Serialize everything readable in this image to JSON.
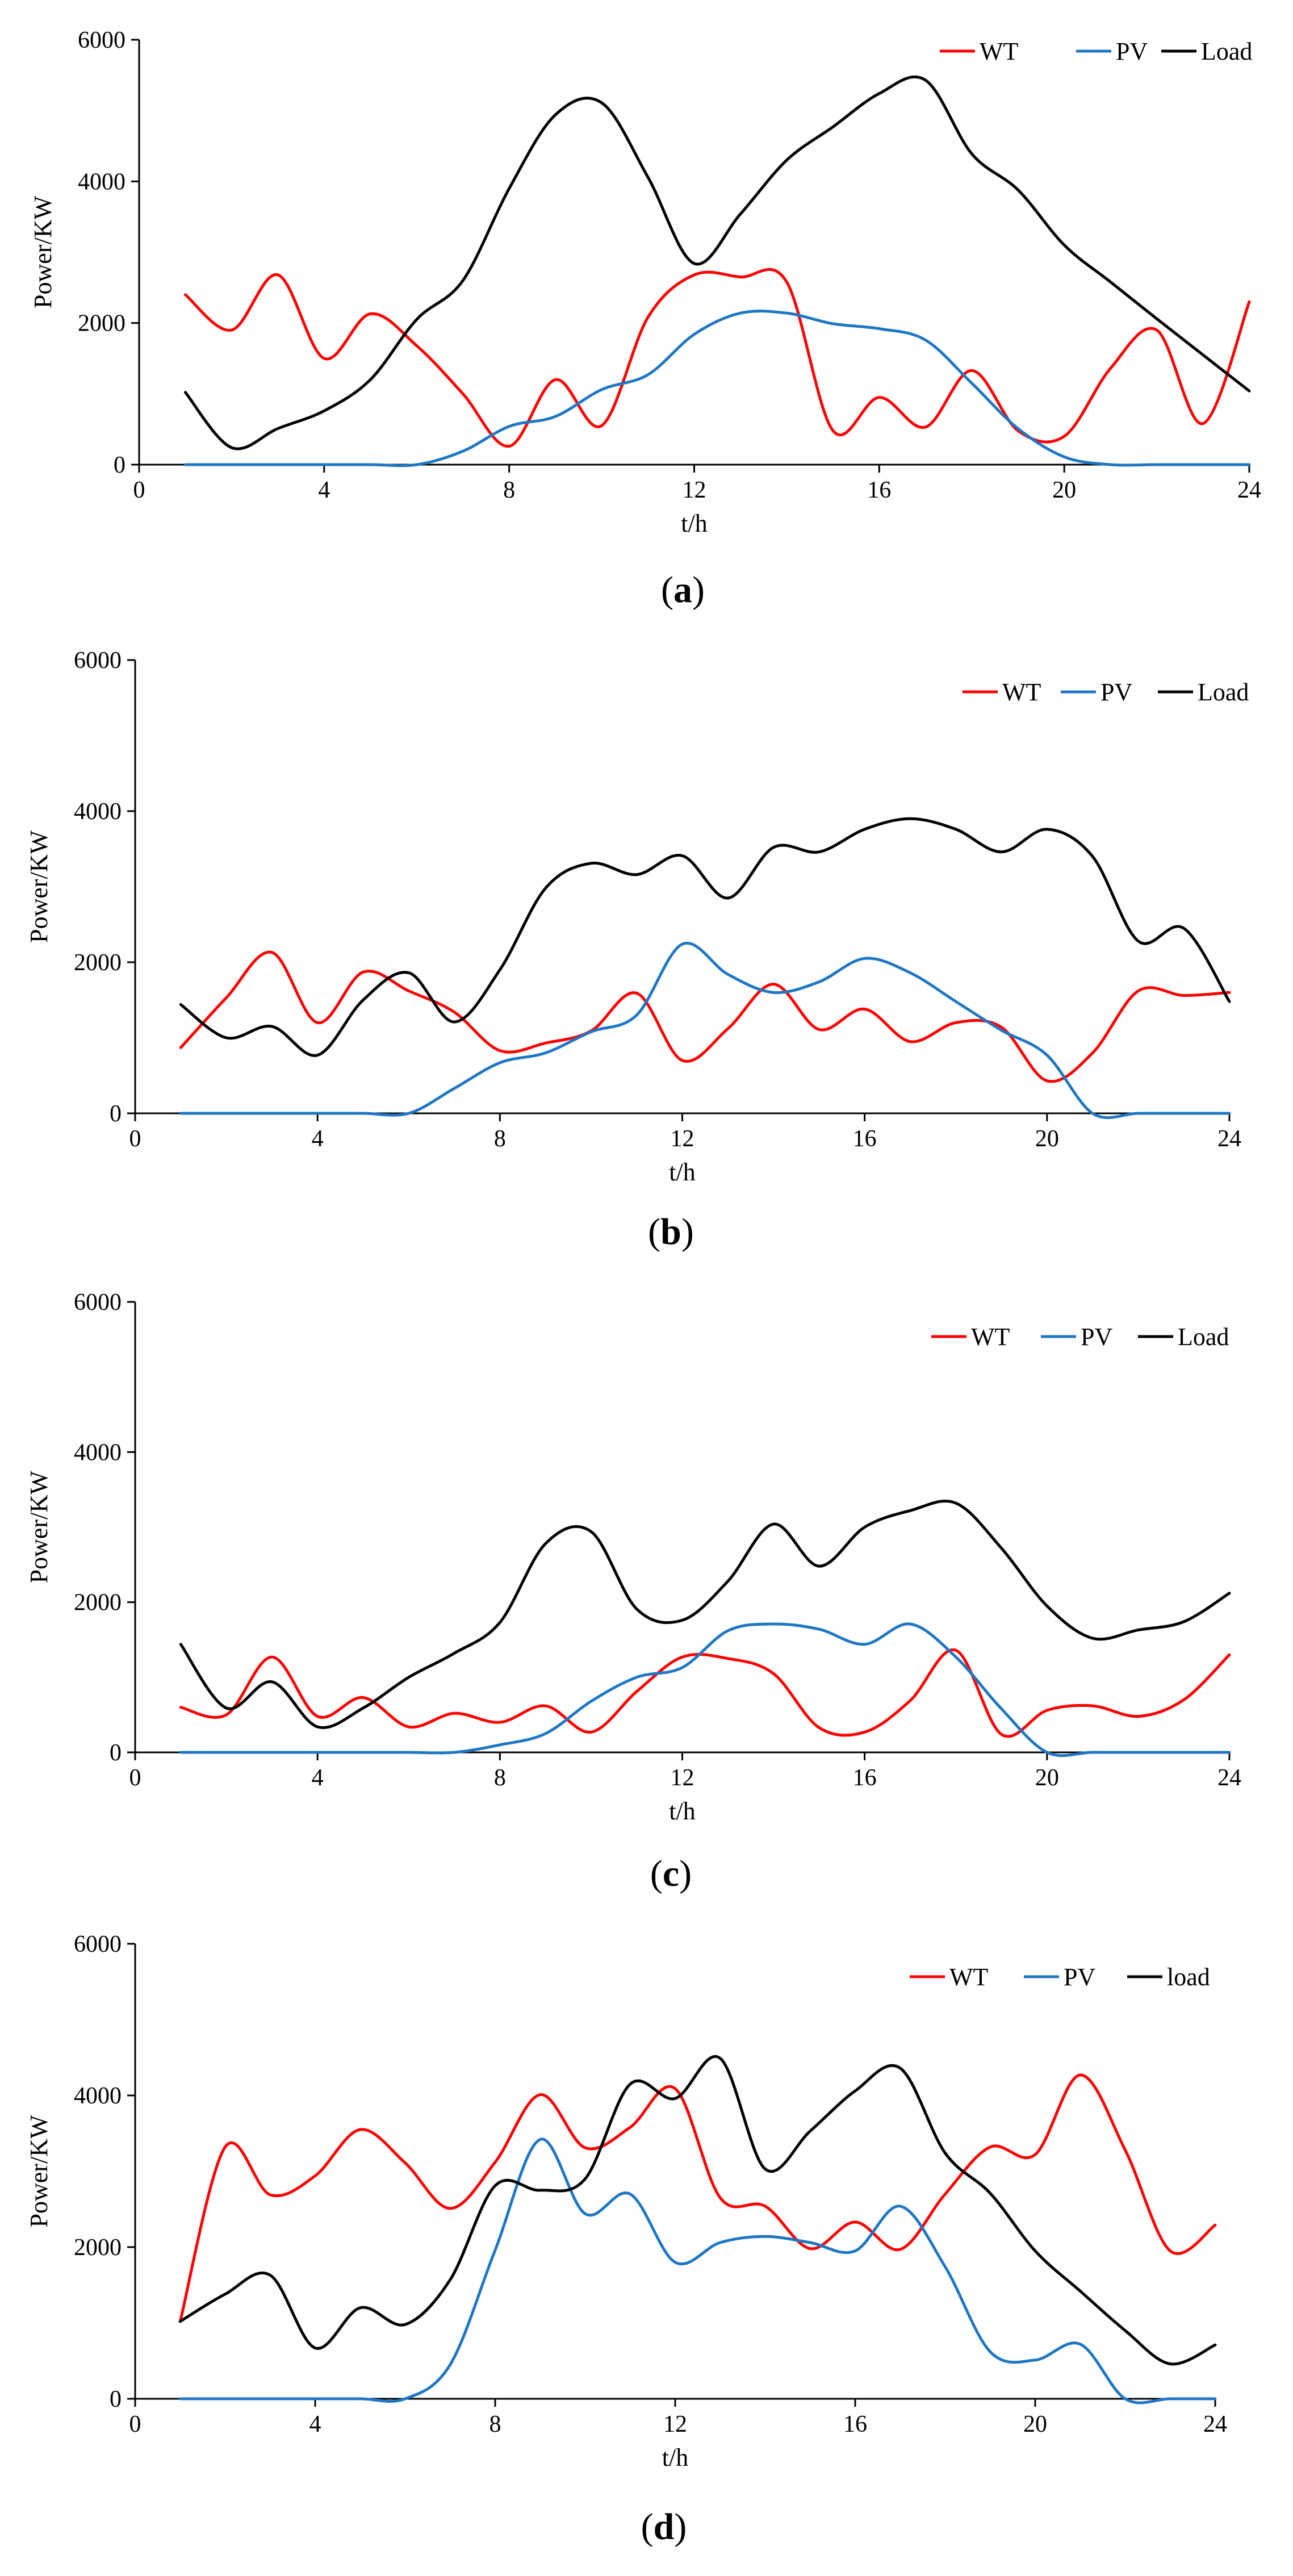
{
  "chart_data": [
    {
      "type": "line",
      "panel_label": "a",
      "xlabel": "t/h",
      "ylabel": "Power/KW",
      "xlim": [
        0,
        24
      ],
      "ylim": [
        0,
        6000
      ],
      "xticks": [
        0,
        4,
        8,
        12,
        16,
        20,
        24
      ],
      "yticks": [
        0,
        2000,
        4000,
        6000
      ],
      "grid": false,
      "legend_position": "top-right",
      "x": [
        1,
        2,
        3,
        4,
        5,
        6,
        7,
        8,
        9,
        10,
        11,
        12,
        13,
        14,
        15,
        16,
        17,
        18,
        19,
        20,
        21,
        22,
        23,
        24
      ],
      "series": [
        {
          "name": "WT",
          "color": "#ff0000",
          "values": [
            2400,
            1900,
            2680,
            1500,
            2130,
            1680,
            1000,
            260,
            1200,
            550,
            2080,
            2680,
            2650,
            2580,
            480,
            950,
            530,
            1330,
            480,
            400,
            1360,
            1900,
            580,
            2300
          ]
        },
        {
          "name": "PV",
          "color": "#1f77c4",
          "values": [
            0,
            0,
            0,
            0,
            0,
            0,
            190,
            540,
            680,
            1060,
            1270,
            1840,
            2140,
            2140,
            1990,
            1920,
            1760,
            1150,
            510,
            110,
            0,
            0,
            0,
            0
          ]
        },
        {
          "name": "Load",
          "color": "#000000",
          "values": [
            1020,
            240,
            510,
            760,
            1200,
            2050,
            2600,
            3900,
            4940,
            5110,
            4060,
            2840,
            3540,
            4300,
            4770,
            5240,
            5430,
            4390,
            3880,
            3100,
            2580,
            2060,
            1550,
            1040
          ]
        }
      ]
    },
    {
      "type": "line",
      "panel_label": "b",
      "xlabel": "t/h",
      "ylabel": "Power/KW",
      "xlim": [
        0,
        24
      ],
      "ylim": [
        0,
        6000
      ],
      "xticks": [
        0,
        4,
        8,
        12,
        16,
        20,
        24
      ],
      "yticks": [
        0,
        2000,
        4000,
        6000
      ],
      "grid": false,
      "legend_position": "top-right",
      "x": [
        1,
        2,
        3,
        4,
        5,
        6,
        7,
        8,
        9,
        10,
        11,
        12,
        13,
        14,
        15,
        16,
        17,
        18,
        19,
        20,
        21,
        22,
        23,
        24
      ],
      "series": [
        {
          "name": "WT",
          "color": "#ff0000",
          "values": [
            870,
            1530,
            2130,
            1200,
            1870,
            1620,
            1340,
            830,
            930,
            1090,
            1590,
            700,
            1120,
            1710,
            1110,
            1380,
            950,
            1200,
            1140,
            430,
            800,
            1620,
            1560,
            1600
          ]
        },
        {
          "name": "PV",
          "color": "#1f77c4",
          "values": [
            0,
            0,
            0,
            0,
            0,
            0,
            330,
            670,
            800,
            1080,
            1300,
            2240,
            1840,
            1600,
            1740,
            2050,
            1860,
            1480,
            1100,
            770,
            0,
            0,
            0,
            0
          ]
        },
        {
          "name": "Load",
          "color": "#000000",
          "values": [
            1440,
            1000,
            1150,
            770,
            1500,
            1860,
            1210,
            1900,
            2980,
            3310,
            3160,
            3410,
            2850,
            3520,
            3460,
            3760,
            3900,
            3760,
            3460,
            3760,
            3400,
            2280,
            2450,
            1480
          ]
        }
      ]
    },
    {
      "type": "line",
      "panel_label": "c",
      "xlabel": "t/h",
      "ylabel": "Power/KW",
      "xlim": [
        0,
        24
      ],
      "ylim": [
        0,
        6000
      ],
      "xticks": [
        0,
        4,
        8,
        12,
        16,
        20,
        24
      ],
      "yticks": [
        0,
        2000,
        4000,
        6000
      ],
      "grid": false,
      "legend_position": "top-right",
      "x": [
        1,
        2,
        3,
        4,
        5,
        6,
        7,
        8,
        9,
        10,
        11,
        12,
        13,
        14,
        15,
        16,
        17,
        18,
        19,
        20,
        21,
        22,
        23,
        24
      ],
      "series": [
        {
          "name": "WT",
          "color": "#ff0000",
          "values": [
            600,
            500,
            1270,
            480,
            730,
            340,
            520,
            400,
            620,
            270,
            810,
            1270,
            1250,
            1050,
            330,
            270,
            690,
            1360,
            240,
            560,
            620,
            480,
            700,
            1300
          ]
        },
        {
          "name": "PV",
          "color": "#1f77c4",
          "values": [
            0,
            0,
            0,
            0,
            0,
            0,
            0,
            100,
            250,
            680,
            1000,
            1130,
            1620,
            1710,
            1640,
            1440,
            1710,
            1270,
            580,
            0,
            0,
            0,
            0,
            0
          ]
        },
        {
          "name": "Load",
          "color": "#000000",
          "values": [
            1440,
            590,
            940,
            340,
            590,
            1000,
            1320,
            1730,
            2780,
            2940,
            1910,
            1760,
            2280,
            3040,
            2480,
            3000,
            3220,
            3320,
            2720,
            1950,
            1520,
            1630,
            1740,
            2120
          ]
        }
      ]
    },
    {
      "type": "line",
      "panel_label": "d",
      "xlabel": "t/h",
      "ylabel": "Power/KW",
      "xlim": [
        0,
        24
      ],
      "ylim": [
        0,
        6000
      ],
      "xticks": [
        0,
        4,
        8,
        12,
        16,
        20,
        24
      ],
      "yticks": [
        0,
        2000,
        4000,
        6000
      ],
      "grid": false,
      "legend_position": "top-right",
      "x": [
        1,
        2,
        3,
        4,
        5,
        6,
        7,
        8,
        9,
        10,
        11,
        12,
        13,
        14,
        15,
        16,
        17,
        18,
        19,
        20,
        21,
        22,
        23,
        24
      ],
      "series": [
        {
          "name": "WT",
          "color": "#ff0000",
          "values": [
            1020,
            3320,
            2690,
            2940,
            3550,
            3110,
            2510,
            3120,
            4010,
            3310,
            3580,
            4090,
            2650,
            2540,
            1980,
            2330,
            1970,
            2700,
            3320,
            3220,
            4270,
            3280,
            1950,
            2290
          ]
        },
        {
          "name": "PV",
          "color": "#1f77c4",
          "values": [
            0,
            0,
            0,
            0,
            0,
            0,
            450,
            1960,
            3420,
            2440,
            2700,
            1800,
            2060,
            2140,
            2060,
            1950,
            2540,
            1740,
            620,
            510,
            720,
            0,
            0,
            0
          ]
        },
        {
          "name": "load",
          "color": "#000000",
          "values": [
            1020,
            1380,
            1630,
            670,
            1200,
            980,
            1570,
            2810,
            2750,
            2900,
            4150,
            3960,
            4490,
            3030,
            3530,
            4060,
            4360,
            3240,
            2710,
            1950,
            1420,
            900,
            460,
            710
          ]
        }
      ]
    }
  ]
}
